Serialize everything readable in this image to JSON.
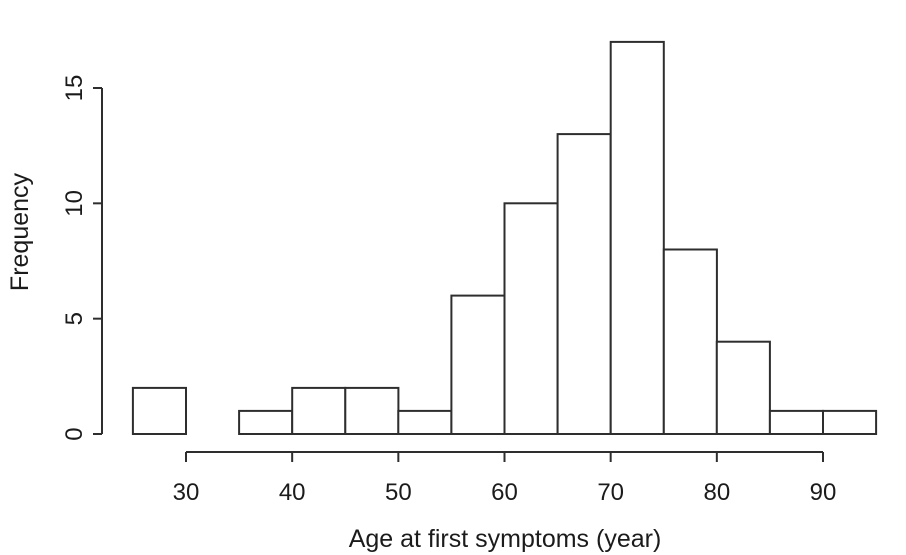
{
  "figure": {
    "background": "#ffffff"
  },
  "chart_data": {
    "type": "bar",
    "subtype": "histogram",
    "title": "",
    "xlabel": "Age at first symptoms (year)",
    "ylabel": "Frequency",
    "bin_edges": [
      25,
      30,
      35,
      40,
      45,
      50,
      55,
      60,
      65,
      70,
      75,
      80,
      85,
      90,
      95
    ],
    "values": [
      2,
      0,
      1,
      2,
      2,
      1,
      6,
      10,
      13,
      17,
      8,
      4,
      1,
      1
    ],
    "x_ticks": [
      30,
      40,
      50,
      60,
      70,
      80,
      90
    ],
    "y_ticks": [
      0,
      5,
      10,
      15
    ],
    "xlim": [
      25,
      95
    ],
    "ylim": [
      0,
      17
    ],
    "grid": false,
    "legend_position": "none",
    "bar_fill": "#ffffff",
    "bar_stroke": "#2e2e2e",
    "axis_color": "#2e2e2e",
    "text_color": "#1b1b1b"
  }
}
